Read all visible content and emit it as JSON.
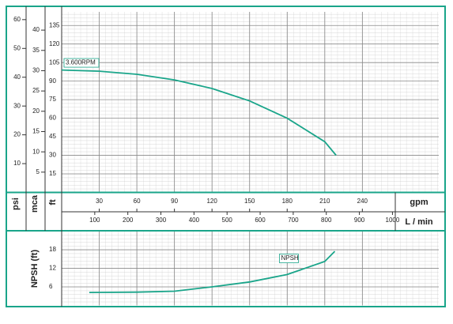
{
  "chart_data": [
    {
      "type": "line",
      "x": [
        0,
        30,
        60,
        90,
        120,
        150,
        180,
        210,
        219
      ],
      "series": [
        {
          "name": "3.600RPM",
          "color": "#1aa58a",
          "values": [
            99,
            98,
            95.5,
            91,
            84,
            74,
            60,
            41,
            30
          ]
        }
      ],
      "xlabel": "gpm",
      "xlim": [
        0,
        301
      ],
      "xticks": [
        30,
        60,
        90,
        120,
        150,
        180,
        210,
        240
      ],
      "x2label": "L / min",
      "x2lim": [
        0,
        1140
      ],
      "x2ticks": [
        100,
        200,
        300,
        400,
        500,
        600,
        700,
        800,
        900,
        1000
      ],
      "ylabel": "ft",
      "ylim": [
        0,
        146
      ],
      "yticks": [
        15,
        30,
        45,
        60,
        75,
        90,
        105,
        120,
        135
      ],
      "y2label": "mca",
      "y2lim": [
        0,
        44.5
      ],
      "y2ticks": [
        5,
        10,
        15,
        20,
        25,
        30,
        35,
        40
      ],
      "y3label": "psi",
      "y3lim": [
        0,
        62.7
      ],
      "y3ticks": [
        10,
        20,
        30,
        40,
        50,
        60
      ],
      "grid": true
    },
    {
      "type": "line",
      "x": [
        22,
        60,
        90,
        120,
        150,
        180,
        210,
        218
      ],
      "series": [
        {
          "name": "NPSH",
          "color": "#1aa58a",
          "values": [
            4.2,
            4.3,
            4.6,
            6,
            7.6,
            10,
            14.2,
            17.5
          ]
        }
      ],
      "xlim": [
        0,
        301
      ],
      "ylabel": "NPSH (ft)",
      "ylim": [
        0,
        23.9
      ],
      "yticks": [
        6,
        12,
        18
      ],
      "grid": true
    }
  ]
}
